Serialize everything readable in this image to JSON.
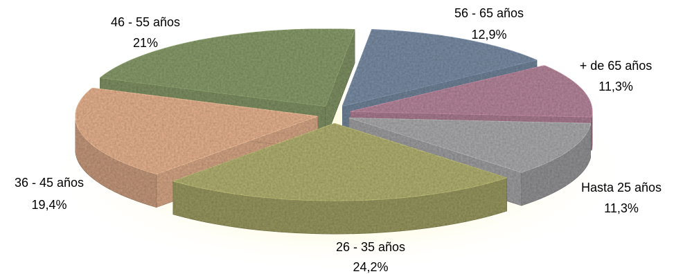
{
  "chart_data": {
    "type": "pie",
    "title": "",
    "legend": "none",
    "slices": [
      {
        "label": "56 - 65 años",
        "value_text": "12,9%",
        "value": 12.9,
        "color": "#7b8ea6"
      },
      {
        "label": "+ de  65 años",
        "value_text": "11,3%",
        "value": 11.3,
        "color": "#b8879d"
      },
      {
        "label": "Hasta 25 años",
        "value_text": "11,3%",
        "value": 11.3,
        "color": "#acacae"
      },
      {
        "label": "26 - 35 años",
        "value_text": "24,2%",
        "value": 24.2,
        "color": "#b3b272"
      },
      {
        "label": "36 - 45 años",
        "value_text": "19,4%",
        "value": 19.4,
        "color": "#e8b491"
      },
      {
        "label": "46 - 55 años",
        "value_text": "21%",
        "value": 21.0,
        "color": "#8a9d6d"
      }
    ]
  }
}
